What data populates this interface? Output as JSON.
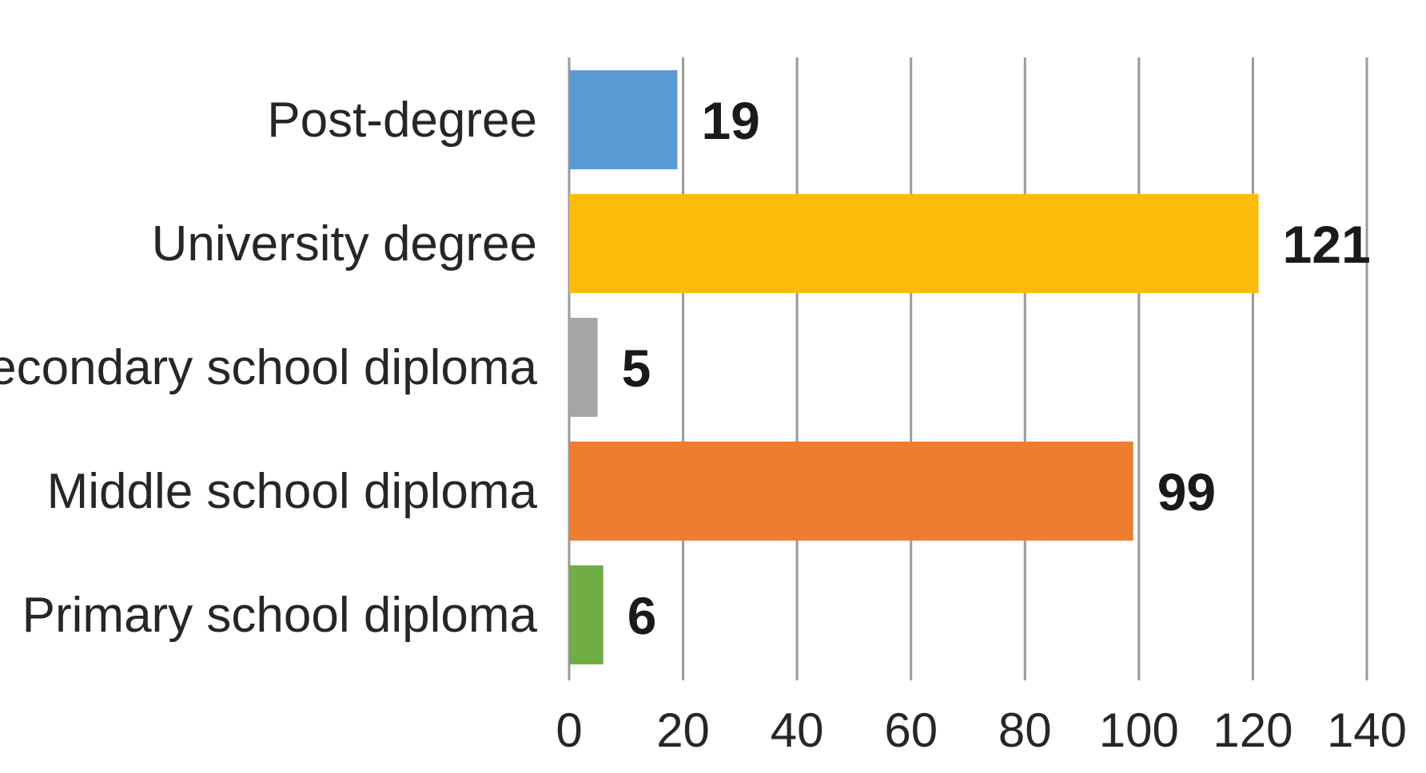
{
  "chart_data": {
    "type": "bar",
    "orientation": "horizontal",
    "categories": [
      "Post-degree",
      "University degree",
      "Secondary school diploma",
      "Middle school diploma",
      "Primary school diploma"
    ],
    "values": [
      19,
      121,
      5,
      99,
      6
    ],
    "value_labels": [
      "19",
      "121",
      "5",
      "99",
      "6"
    ],
    "colors": [
      "#5b9bd5",
      "#fbbc0c",
      "#a5a5a5",
      "#ed7d31",
      "#70ad47"
    ],
    "title": "",
    "xlabel": "",
    "ylabel": "",
    "xlim": [
      0,
      140
    ],
    "xticks": [
      0,
      20,
      40,
      60,
      80,
      100,
      120,
      140
    ],
    "xtick_labels": [
      "0",
      "20",
      "40",
      "60",
      "80",
      "100",
      "120",
      "140"
    ],
    "grid": "vertical",
    "legend": "none"
  }
}
